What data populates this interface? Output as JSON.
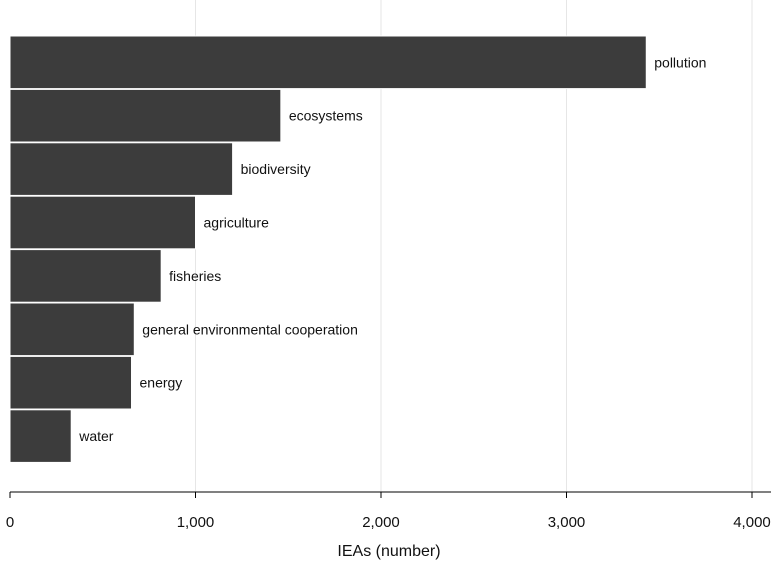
{
  "chart_data": {
    "type": "bar",
    "orientation": "horizontal",
    "categories": [
      "pollution",
      "ecosystems",
      "biodiversity",
      "agriculture",
      "fisheries",
      "general environmental cooperation",
      "energy",
      "water"
    ],
    "values": [
      3430,
      1460,
      1200,
      1000,
      815,
      670,
      655,
      330
    ],
    "xlabel": "IEAs (number)",
    "ylabel": "",
    "xlim": [
      0,
      4000
    ],
    "xticks": [
      0,
      1000,
      2000,
      3000,
      4000
    ],
    "xtick_labels": [
      "0",
      "1,000",
      "2,000",
      "3,000",
      "4,000"
    ],
    "grid": true,
    "bar_color": "#3c3c3c",
    "labels_position": "right of bar"
  }
}
